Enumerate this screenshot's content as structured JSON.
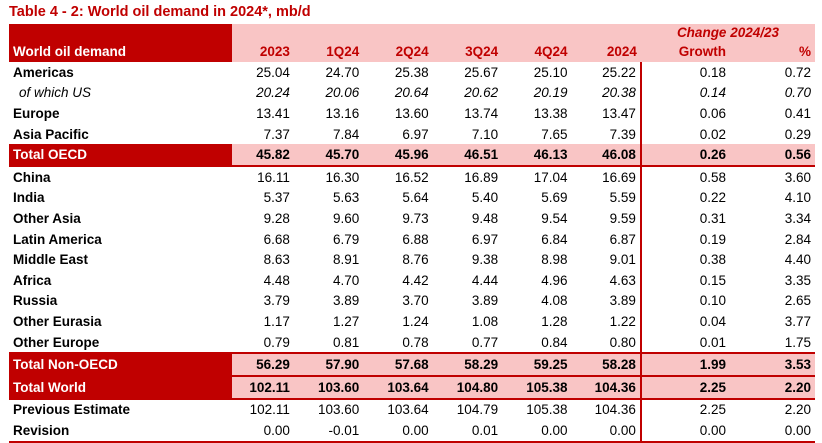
{
  "title": "Table 4 - 2: World oil demand in 2024*, mb/d",
  "header": {
    "row_label": "World oil demand",
    "columns": [
      "2023",
      "1Q24",
      "2Q24",
      "3Q24",
      "4Q24",
      "2024"
    ],
    "change_title": "Change 2024/23",
    "growth": "Growth",
    "percent": "%"
  },
  "rows": [
    {
      "label": "Americas",
      "values": [
        "25.04",
        "24.70",
        "25.38",
        "25.67",
        "25.10",
        "25.22"
      ],
      "growth": "0.18",
      "pct": "0.72"
    },
    {
      "label": "of which US",
      "values": [
        "20.24",
        "20.06",
        "20.64",
        "20.62",
        "20.19",
        "20.38"
      ],
      "growth": "0.14",
      "pct": "0.70"
    },
    {
      "label": "Europe",
      "values": [
        "13.41",
        "13.16",
        "13.60",
        "13.74",
        "13.38",
        "13.47"
      ],
      "growth": "0.06",
      "pct": "0.41"
    },
    {
      "label": "Asia Pacific",
      "values": [
        "7.37",
        "7.84",
        "6.97",
        "7.10",
        "7.65",
        "7.39"
      ],
      "growth": "0.02",
      "pct": "0.29"
    },
    {
      "label": "Total OECD",
      "values": [
        "45.82",
        "45.70",
        "45.96",
        "46.51",
        "46.13",
        "46.08"
      ],
      "growth": "0.26",
      "pct": "0.56"
    },
    {
      "label": "China",
      "values": [
        "16.11",
        "16.30",
        "16.52",
        "16.89",
        "17.04",
        "16.69"
      ],
      "growth": "0.58",
      "pct": "3.60"
    },
    {
      "label": "India",
      "values": [
        "5.37",
        "5.63",
        "5.64",
        "5.40",
        "5.69",
        "5.59"
      ],
      "growth": "0.22",
      "pct": "4.10"
    },
    {
      "label": "Other Asia",
      "values": [
        "9.28",
        "9.60",
        "9.73",
        "9.48",
        "9.54",
        "9.59"
      ],
      "growth": "0.31",
      "pct": "3.34"
    },
    {
      "label": "Latin America",
      "values": [
        "6.68",
        "6.79",
        "6.88",
        "6.97",
        "6.84",
        "6.87"
      ],
      "growth": "0.19",
      "pct": "2.84"
    },
    {
      "label": "Middle East",
      "values": [
        "8.63",
        "8.91",
        "8.76",
        "9.38",
        "8.98",
        "9.01"
      ],
      "growth": "0.38",
      "pct": "4.40"
    },
    {
      "label": "Africa",
      "values": [
        "4.48",
        "4.70",
        "4.42",
        "4.44",
        "4.96",
        "4.63"
      ],
      "growth": "0.15",
      "pct": "3.35"
    },
    {
      "label": "Russia",
      "values": [
        "3.79",
        "3.89",
        "3.70",
        "3.89",
        "4.08",
        "3.89"
      ],
      "growth": "0.10",
      "pct": "2.65"
    },
    {
      "label": "Other Eurasia",
      "values": [
        "1.17",
        "1.27",
        "1.24",
        "1.08",
        "1.28",
        "1.22"
      ],
      "growth": "0.04",
      "pct": "3.77"
    },
    {
      "label": "Other Europe",
      "values": [
        "0.79",
        "0.81",
        "0.78",
        "0.77",
        "0.84",
        "0.80"
      ],
      "growth": "0.01",
      "pct": "1.75"
    },
    {
      "label": "Total Non-OECD",
      "values": [
        "56.29",
        "57.90",
        "57.68",
        "58.29",
        "59.25",
        "58.28"
      ],
      "growth": "1.99",
      "pct": "3.53"
    },
    {
      "label": "Total World",
      "values": [
        "102.11",
        "103.60",
        "103.64",
        "104.80",
        "105.38",
        "104.36"
      ],
      "growth": "2.25",
      "pct": "2.20"
    },
    {
      "label": "Previous Estimate",
      "values": [
        "102.11",
        "103.60",
        "103.64",
        "104.79",
        "105.38",
        "104.36"
      ],
      "growth": "2.25",
      "pct": "2.20"
    },
    {
      "label": "Revision",
      "values": [
        "0.00",
        "-0.01",
        "0.00",
        "0.01",
        "0.00",
        "0.00"
      ],
      "growth": "0.00",
      "pct": "0.00"
    }
  ],
  "colors": {
    "accent": "#c00000",
    "highlight": "#f9c5c5"
  }
}
